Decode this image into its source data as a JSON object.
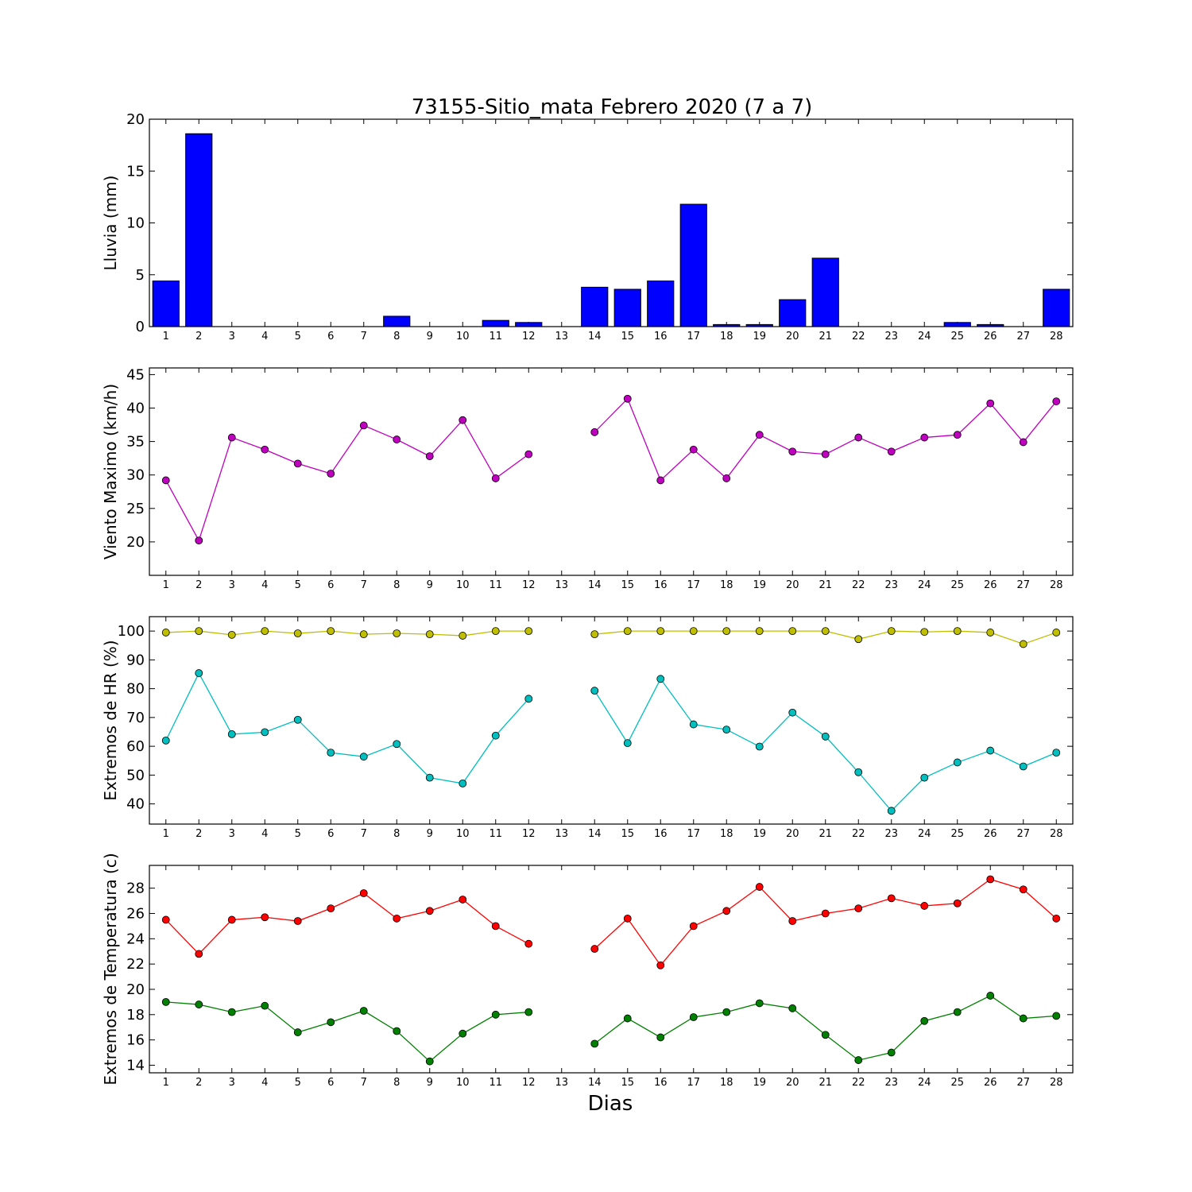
{
  "figure": {
    "title": "73155-Sitio_mata Febrero 2020  (7 a 7)",
    "xlabel": "Dias"
  },
  "chart_data": [
    {
      "type": "bar",
      "ylabel": "Lluvia (mm)",
      "ylim": [
        0,
        20
      ],
      "yticks": [
        0,
        5,
        10,
        15,
        20
      ],
      "categories": [
        "1",
        "2",
        "3",
        "4",
        "5",
        "6",
        "7",
        "8",
        "9",
        "10",
        "11",
        "12",
        "13",
        "14",
        "15",
        "16",
        "17",
        "18",
        "19",
        "20",
        "21",
        "22",
        "23",
        "24",
        "25",
        "26",
        "27",
        "28"
      ],
      "color": "#0000ff",
      "values": [
        4.4,
        18.6,
        0,
        0,
        0,
        0,
        0,
        1.0,
        0,
        0,
        0.6,
        0.4,
        null,
        3.8,
        3.6,
        4.4,
        11.8,
        0.2,
        0.2,
        2.6,
        6.6,
        0,
        0,
        0,
        0.4,
        0.2,
        0,
        3.6
      ]
    },
    {
      "type": "line",
      "ylabel": "Viento Maximo (km/h)",
      "ylim": [
        15,
        46
      ],
      "yticks": [
        20,
        25,
        30,
        35,
        40,
        45
      ],
      "categories": [
        "1",
        "2",
        "3",
        "4",
        "5",
        "6",
        "7",
        "8",
        "9",
        "10",
        "11",
        "12",
        "13",
        "14",
        "15",
        "16",
        "17",
        "18",
        "19",
        "20",
        "21",
        "22",
        "23",
        "24",
        "25",
        "26",
        "27",
        "28"
      ],
      "series": [
        {
          "color": "#bf00bf",
          "values": [
            29.2,
            20.2,
            35.6,
            33.8,
            31.7,
            30.2,
            37.4,
            35.3,
            32.8,
            38.2,
            29.5,
            33.1,
            null,
            36.4,
            41.4,
            29.2,
            33.8,
            29.5,
            36.0,
            33.5,
            33.1,
            35.6,
            33.5,
            35.6,
            36.0,
            40.7,
            34.9,
            41.0
          ]
        }
      ]
    },
    {
      "type": "line",
      "ylabel": "Extremos de HR (%)",
      "ylim": [
        33,
        105
      ],
      "yticks": [
        40,
        50,
        60,
        70,
        80,
        90,
        100
      ],
      "categories": [
        "1",
        "2",
        "3",
        "4",
        "5",
        "6",
        "7",
        "8",
        "9",
        "10",
        "11",
        "12",
        "13",
        "14",
        "15",
        "16",
        "17",
        "18",
        "19",
        "20",
        "21",
        "22",
        "23",
        "24",
        "25",
        "26",
        "27",
        "28"
      ],
      "series": [
        {
          "color": "#bfbf00",
          "values": [
            99.5,
            100,
            98.7,
            100,
            99.2,
            100,
            98.9,
            99.2,
            98.9,
            98.4,
            100,
            100,
            null,
            98.9,
            100,
            100,
            100,
            100,
            100,
            100,
            100,
            97.2,
            100,
            99.7,
            100,
            99.5,
            95.5,
            99.5
          ]
        },
        {
          "color": "#00bfbf",
          "values": [
            62,
            85.4,
            64.2,
            64.9,
            69.2,
            57.8,
            56.4,
            60.8,
            49.1,
            47.1,
            63.7,
            76.5,
            null,
            79.3,
            61.1,
            83.4,
            67.6,
            65.8,
            59.9,
            71.7,
            63.4,
            51.0,
            37.6,
            49.1,
            54.4,
            58.5,
            53.0,
            57.8
          ]
        }
      ]
    },
    {
      "type": "line",
      "ylabel": "Extremos de Temperatura (c)",
      "ylim": [
        13.4,
        29.8
      ],
      "yticks": [
        14,
        16,
        18,
        20,
        22,
        24,
        26,
        28
      ],
      "categories": [
        "1",
        "2",
        "3",
        "4",
        "5",
        "6",
        "7",
        "8",
        "9",
        "10",
        "11",
        "12",
        "13",
        "14",
        "15",
        "16",
        "17",
        "18",
        "19",
        "20",
        "21",
        "22",
        "23",
        "24",
        "25",
        "26",
        "27",
        "28"
      ],
      "series": [
        {
          "color": "#ff0000",
          "values": [
            25.5,
            22.8,
            25.5,
            25.7,
            25.4,
            26.4,
            27.6,
            25.6,
            26.2,
            27.1,
            25.0,
            23.6,
            null,
            23.2,
            25.6,
            21.9,
            25.0,
            26.2,
            28.1,
            25.4,
            26.0,
            26.4,
            27.2,
            26.6,
            26.8,
            28.7,
            27.9,
            25.6
          ]
        },
        {
          "color": "#008000",
          "values": [
            19.0,
            18.8,
            18.2,
            18.7,
            16.6,
            17.4,
            18.3,
            16.7,
            14.3,
            16.5,
            18.0,
            18.2,
            null,
            15.7,
            17.7,
            16.2,
            17.8,
            18.2,
            18.9,
            18.5,
            16.4,
            14.4,
            15.0,
            17.5,
            18.2,
            19.5,
            17.7,
            17.9
          ]
        }
      ]
    }
  ]
}
